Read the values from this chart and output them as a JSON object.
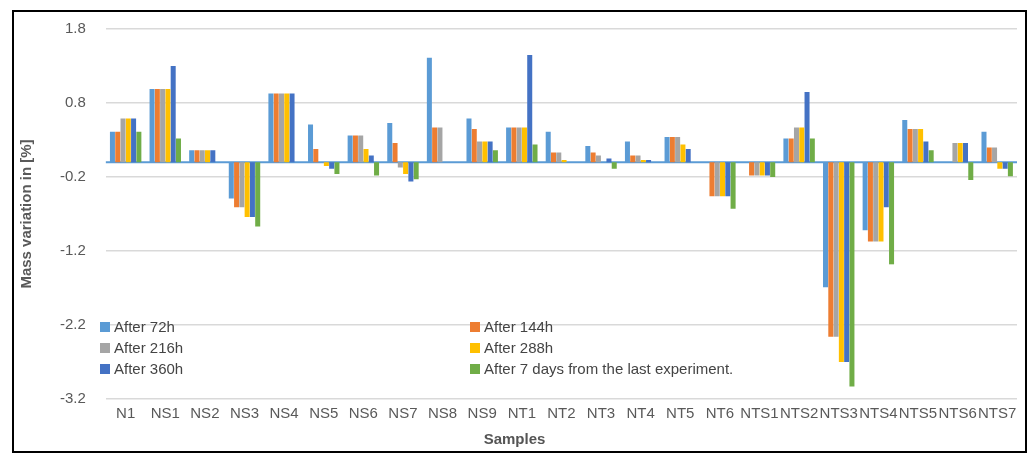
{
  "chart_data": {
    "type": "bar",
    "xlabel": "Samples",
    "ylabel": "Mass variation in [%]",
    "categories": [
      "N1",
      "NS1",
      "NS2",
      "NS3",
      "NS4",
      "NS5",
      "NS6",
      "NS7",
      "NS8",
      "NS9",
      "NT1",
      "NT2",
      "NT3",
      "NT4",
      "NT5",
      "NT6",
      "NTS1",
      "NTS2",
      "NTS3",
      "NTS4",
      "NTS5",
      "NTS6",
      "NTS7"
    ],
    "series": [
      {
        "name": "After 72h",
        "color": "#5b9bd5",
        "values": [
          0.41,
          0.99,
          0.16,
          -0.49,
          0.93,
          0.51,
          0.36,
          0.53,
          1.41,
          0.59,
          0.47,
          0.41,
          0.22,
          0.28,
          0.34,
          0,
          0,
          0.32,
          -1.69,
          -0.92,
          0.57,
          0,
          0.41
        ]
      },
      {
        "name": "After 144h",
        "color": "#ed7d31",
        "values": [
          0.41,
          0.99,
          0.16,
          -0.61,
          0.93,
          0.18,
          0.36,
          0.26,
          0.47,
          0.45,
          0.47,
          0.13,
          0.13,
          0.09,
          0.34,
          -0.46,
          -0.18,
          0.32,
          -2.36,
          -1.07,
          0.45,
          0,
          0.2
        ]
      },
      {
        "name": "After 216h",
        "color": "#a5a5a5",
        "values": [
          0.59,
          0.99,
          0.16,
          -0.61,
          0.93,
          0,
          0.36,
          -0.07,
          0.47,
          0.28,
          0.47,
          0.13,
          0.09,
          0.09,
          0.34,
          -0.46,
          -0.18,
          0.47,
          -2.36,
          -1.07,
          0.45,
          0.26,
          0.2
        ]
      },
      {
        "name": "After 288h",
        "color": "#ffc000",
        "values": [
          0.59,
          0.99,
          0.16,
          -0.74,
          0.93,
          -0.05,
          0.18,
          -0.16,
          0,
          0.28,
          0.47,
          0.03,
          0,
          0.03,
          0.24,
          -0.46,
          -0.18,
          0.47,
          -2.7,
          -1.07,
          0.45,
          0.26,
          -0.09
        ]
      },
      {
        "name": "After 360h",
        "color": "#4472c4",
        "values": [
          0.59,
          1.3,
          0.16,
          -0.74,
          0.93,
          -0.09,
          0.09,
          -0.26,
          0,
          0.28,
          1.45,
          0,
          0.05,
          0.03,
          0.18,
          -0.46,
          -0.18,
          0.95,
          -2.7,
          -0.61,
          0.28,
          0.26,
          -0.09
        ]
      },
      {
        "name": "After 7 days from the last experiment.",
        "color": "#70ad47",
        "values": [
          0.41,
          0.32,
          0,
          -0.87,
          0,
          -0.16,
          -0.18,
          -0.23,
          0,
          0.16,
          0.24,
          0,
          -0.09,
          0,
          0,
          -0.63,
          -0.2,
          0.32,
          -3.03,
          -1.38,
          0.16,
          -0.24,
          -0.19
        ]
      }
    ],
    "ylim": [
      -3.2,
      1.8
    ],
    "yticks": [
      1.8,
      0.8,
      -0.2,
      -1.2,
      -2.2,
      -3.2
    ],
    "grid": "y",
    "legend": "bottom",
    "ref_lines": [
      {
        "axis": "y",
        "value": 0,
        "color": "#5b9bd5"
      }
    ]
  }
}
